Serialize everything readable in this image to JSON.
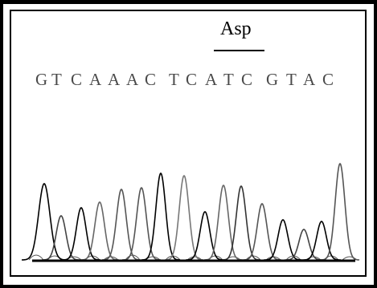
{
  "amino_acid_label": "Asp",
  "sequence": [
    "G",
    "T",
    "C",
    "A",
    "A",
    "A",
    "C",
    "T",
    "C",
    "A",
    "T",
    "C",
    "G",
    "T",
    "A",
    "C"
  ],
  "chromatogram": {
    "peaks": [
      {
        "h": 0.95,
        "w": 7,
        "c": "#000"
      },
      {
        "h": 0.55,
        "w": 6,
        "c": "#444"
      },
      {
        "h": 0.65,
        "w": 6,
        "c": "#000"
      },
      {
        "h": 0.72,
        "w": 6,
        "c": "#666"
      },
      {
        "h": 0.88,
        "w": 6,
        "c": "#555"
      },
      {
        "h": 0.9,
        "w": 6,
        "c": "#555"
      },
      {
        "h": 1.08,
        "w": 6,
        "c": "#000"
      },
      {
        "h": 1.05,
        "w": 6,
        "c": "#777"
      },
      {
        "h": 0.6,
        "w": 6,
        "c": "#000"
      },
      {
        "h": 0.93,
        "w": 6,
        "c": "#666"
      },
      {
        "h": 0.92,
        "w": 6,
        "c": "#333"
      },
      {
        "h": 0.7,
        "w": 6,
        "c": "#555"
      },
      {
        "h": 0.5,
        "w": 6,
        "c": "#000"
      },
      {
        "h": 0.38,
        "w": 6,
        "c": "#444"
      },
      {
        "h": 0.48,
        "w": 6,
        "c": "#000"
      },
      {
        "h": 1.2,
        "w": 6,
        "c": "#555"
      }
    ]
  }
}
